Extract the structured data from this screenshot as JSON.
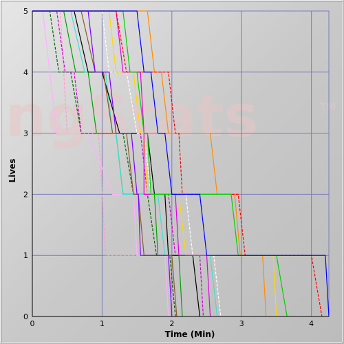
{
  "watermark": {
    "main": "ngStats",
    "tm": "TM"
  },
  "chart_data": {
    "type": "line",
    "title": "",
    "xlabel": "Time (Min)",
    "ylabel": "Lives",
    "xlim": [
      0,
      4.25
    ],
    "ylim": [
      0,
      5
    ],
    "xticks": [
      0,
      1,
      2,
      3,
      4
    ],
    "yticks": [
      0,
      1,
      2,
      3,
      4,
      5
    ],
    "grid": true,
    "legend": "none",
    "series": [
      {
        "color": "#ff9ec8",
        "dashed": true,
        "points": [
          [
            0,
            5
          ],
          [
            0.1,
            5
          ],
          [
            0.4,
            5
          ],
          [
            0.5,
            3
          ],
          [
            0.95,
            3
          ],
          [
            1.05,
            1
          ],
          [
            1.95,
            1
          ],
          [
            2.02,
            0
          ]
        ]
      },
      {
        "color": "#ffb0ff",
        "dashed": false,
        "points": [
          [
            0,
            5
          ],
          [
            0.15,
            5
          ],
          [
            0.35,
            3
          ],
          [
            0.8,
            3
          ],
          [
            1.15,
            2
          ],
          [
            1.45,
            2
          ],
          [
            1.5,
            1
          ],
          [
            1.9,
            1
          ],
          [
            1.95,
            0
          ]
        ]
      },
      {
        "color": "#006400",
        "dashed": true,
        "points": [
          [
            0,
            5
          ],
          [
            0.25,
            5
          ],
          [
            0.38,
            4
          ],
          [
            0.55,
            4
          ],
          [
            0.7,
            3
          ],
          [
            1.3,
            3
          ],
          [
            1.45,
            2
          ],
          [
            1.65,
            2
          ],
          [
            1.78,
            1
          ],
          [
            1.97,
            1
          ],
          [
            2.05,
            0
          ]
        ]
      },
      {
        "color": "#cc00cc",
        "dashed": true,
        "points": [
          [
            0,
            5
          ],
          [
            0.35,
            5
          ],
          [
            0.47,
            4
          ],
          [
            0.6,
            4
          ],
          [
            0.7,
            3
          ],
          [
            1.55,
            3
          ],
          [
            1.65,
            2
          ],
          [
            1.95,
            2
          ],
          [
            2.05,
            1
          ],
          [
            2.4,
            1
          ],
          [
            2.45,
            0
          ]
        ]
      },
      {
        "color": "#00a000",
        "dashed": false,
        "points": [
          [
            0,
            5
          ],
          [
            0.45,
            5
          ],
          [
            0.62,
            4
          ],
          [
            0.8,
            4
          ],
          [
            0.92,
            3
          ],
          [
            1.2,
            3
          ],
          [
            1.3,
            2
          ],
          [
            1.75,
            2
          ],
          [
            1.8,
            1
          ],
          [
            2.1,
            1
          ],
          [
            2.15,
            0
          ]
        ]
      },
      {
        "color": "#40e0d0",
        "dashed": false,
        "points": [
          [
            0,
            5
          ],
          [
            0.55,
            5
          ],
          [
            0.75,
            4
          ],
          [
            1.05,
            4
          ],
          [
            1.15,
            3
          ],
          [
            1.2,
            3
          ],
          [
            1.3,
            2
          ],
          [
            1.8,
            2
          ],
          [
            1.9,
            1
          ],
          [
            2.55,
            1
          ],
          [
            2.65,
            0
          ]
        ]
      },
      {
        "color": "#000000",
        "dashed": false,
        "points": [
          [
            0,
            5
          ],
          [
            0.6,
            5
          ],
          [
            0.8,
            4
          ],
          [
            1.0,
            4
          ],
          [
            1.25,
            3
          ],
          [
            1.65,
            3
          ],
          [
            1.75,
            2
          ],
          [
            1.9,
            2
          ],
          [
            1.95,
            1
          ],
          [
            2.3,
            1
          ],
          [
            2.4,
            0
          ]
        ]
      },
      {
        "color": "#8b5a2b",
        "dashed": false,
        "points": [
          [
            0,
            5
          ],
          [
            0.7,
            5
          ],
          [
            0.9,
            4
          ],
          [
            1.02,
            4
          ],
          [
            1.15,
            3
          ],
          [
            1.35,
            3
          ],
          [
            1.45,
            2
          ],
          [
            1.52,
            2
          ],
          [
            1.6,
            1
          ],
          [
            2.0,
            1
          ],
          [
            2.07,
            0
          ]
        ]
      },
      {
        "color": "#8000ff",
        "dashed": false,
        "points": [
          [
            0,
            5
          ],
          [
            0.8,
            5
          ],
          [
            0.9,
            4
          ],
          [
            1.1,
            4
          ],
          [
            1.2,
            3
          ],
          [
            1.42,
            3
          ],
          [
            1.5,
            2
          ],
          [
            1.52,
            2
          ],
          [
            1.55,
            1
          ],
          [
            1.95,
            1
          ],
          [
            2.0,
            0
          ]
        ]
      },
      {
        "color": "#ffffff",
        "dashed": true,
        "points": [
          [
            0,
            5
          ],
          [
            1.0,
            5
          ],
          [
            1.1,
            4
          ],
          [
            1.35,
            4
          ],
          [
            1.5,
            3
          ],
          [
            1.6,
            3
          ],
          [
            1.7,
            2
          ],
          [
            2.2,
            2
          ],
          [
            2.3,
            1
          ],
          [
            2.6,
            1
          ],
          [
            2.7,
            0
          ]
        ]
      },
      {
        "color": "#ffd700",
        "dashed": false,
        "points": [
          [
            0,
            5
          ],
          [
            1.1,
            5
          ],
          [
            1.2,
            4
          ],
          [
            1.45,
            4
          ],
          [
            1.55,
            3
          ],
          [
            1.6,
            3
          ],
          [
            1.65,
            2
          ],
          [
            2.1,
            2
          ],
          [
            2.2,
            1
          ],
          [
            3.45,
            1
          ],
          [
            3.5,
            0
          ]
        ]
      },
      {
        "color": "#e000e0",
        "dashed": false,
        "points": [
          [
            0,
            5
          ],
          [
            1.2,
            5
          ],
          [
            1.3,
            4
          ],
          [
            1.55,
            4
          ],
          [
            1.6,
            3
          ],
          [
            1.6,
            2
          ],
          [
            2.05,
            2
          ],
          [
            2.1,
            1
          ],
          [
            2.5,
            1
          ],
          [
            2.55,
            0
          ]
        ]
      },
      {
        "color": "#ff8c00",
        "dashed": false,
        "points": [
          [
            0,
            5
          ],
          [
            1.65,
            5
          ],
          [
            1.75,
            4
          ],
          [
            1.85,
            4
          ],
          [
            1.95,
            3
          ],
          [
            2.55,
            3
          ],
          [
            2.65,
            2
          ],
          [
            2.9,
            2
          ],
          [
            2.98,
            1
          ],
          [
            3.3,
            1
          ],
          [
            3.35,
            0
          ]
        ]
      },
      {
        "color": "#ff0000",
        "dashed": true,
        "points": [
          [
            0,
            5
          ],
          [
            1.2,
            5
          ],
          [
            1.35,
            4
          ],
          [
            1.95,
            4
          ],
          [
            2.05,
            3
          ],
          [
            2.1,
            3
          ],
          [
            2.15,
            2
          ],
          [
            2.95,
            2
          ],
          [
            3.05,
            1
          ],
          [
            4.0,
            1
          ],
          [
            4.15,
            0
          ]
        ]
      },
      {
        "color": "#00d000",
        "dashed": false,
        "points": [
          [
            0,
            5
          ],
          [
            1.3,
            5
          ],
          [
            1.4,
            4
          ],
          [
            1.5,
            4
          ],
          [
            1.6,
            3
          ],
          [
            1.65,
            3
          ],
          [
            1.7,
            2
          ],
          [
            2.85,
            2
          ],
          [
            2.95,
            1
          ],
          [
            3.5,
            1
          ],
          [
            3.65,
            0
          ]
        ]
      },
      {
        "color": "#0000ff",
        "dashed": false,
        "points": [
          [
            0,
            5
          ],
          [
            1.5,
            5
          ],
          [
            1.6,
            4
          ],
          [
            1.7,
            4
          ],
          [
            1.8,
            3
          ],
          [
            1.9,
            3
          ],
          [
            2.0,
            2
          ],
          [
            2.4,
            2
          ],
          [
            2.5,
            1
          ],
          [
            4.2,
            1
          ],
          [
            4.25,
            0
          ]
        ]
      }
    ]
  }
}
